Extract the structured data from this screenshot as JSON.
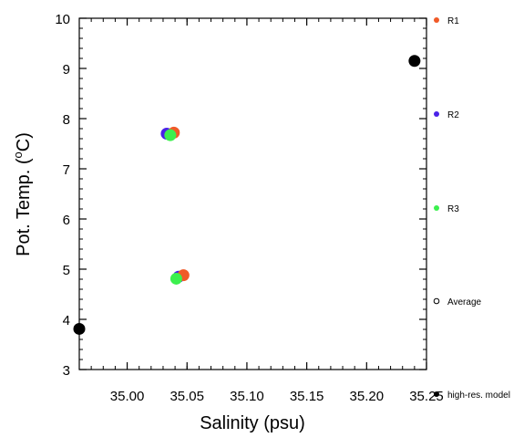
{
  "chart_data": {
    "type": "scatter",
    "xlabel": "Salinity (psu)",
    "ylabel_main": "Pot. Temp. (",
    "ylabel_sup": "o",
    "ylabel_unit": "C)",
    "xlim": [
      34.96,
      35.25
    ],
    "ylim": [
      3,
      10
    ],
    "x_ticks": [
      "35.00",
      "35.05",
      "35.10",
      "35.15",
      "35.20",
      "35.25"
    ],
    "x_tick_values": [
      35.0,
      35.05,
      35.1,
      35.15,
      35.2,
      35.25
    ],
    "y_ticks": [
      "3",
      "4",
      "5",
      "6",
      "7",
      "8",
      "9",
      "10"
    ],
    "y_tick_values": [
      3,
      4,
      5,
      6,
      7,
      8,
      9,
      10
    ],
    "grid": false,
    "legend_placement": "right",
    "legend": [
      {
        "name": "R1",
        "color": "#f05a28",
        "marker": "filled-circle"
      },
      {
        "name": "R2",
        "color": "#4a22e8",
        "marker": "filled-circle"
      },
      {
        "name": "R3",
        "color": "#3cf04e",
        "marker": "filled-circle"
      },
      {
        "name": "Average",
        "color": "#000000",
        "marker": "open-circle"
      },
      {
        "name": "high-res. model",
        "color": "#000000",
        "marker": "filled-circle"
      }
    ],
    "series": [
      {
        "name": "R2",
        "color": "#4a22e8",
        "points": [
          [
            35.033,
            7.7
          ],
          [
            35.043,
            4.85
          ]
        ]
      },
      {
        "name": "R1",
        "color": "#f05a28",
        "points": [
          [
            35.039,
            7.72
          ],
          [
            35.047,
            4.88
          ]
        ]
      },
      {
        "name": "R3",
        "color": "#3cf04e",
        "points": [
          [
            35.036,
            7.67
          ],
          [
            35.041,
            4.81
          ]
        ]
      },
      {
        "name": "high-res. model",
        "color": "#000000",
        "points": [
          [
            34.96,
            3.81
          ],
          [
            35.24,
            9.15
          ]
        ]
      }
    ]
  }
}
